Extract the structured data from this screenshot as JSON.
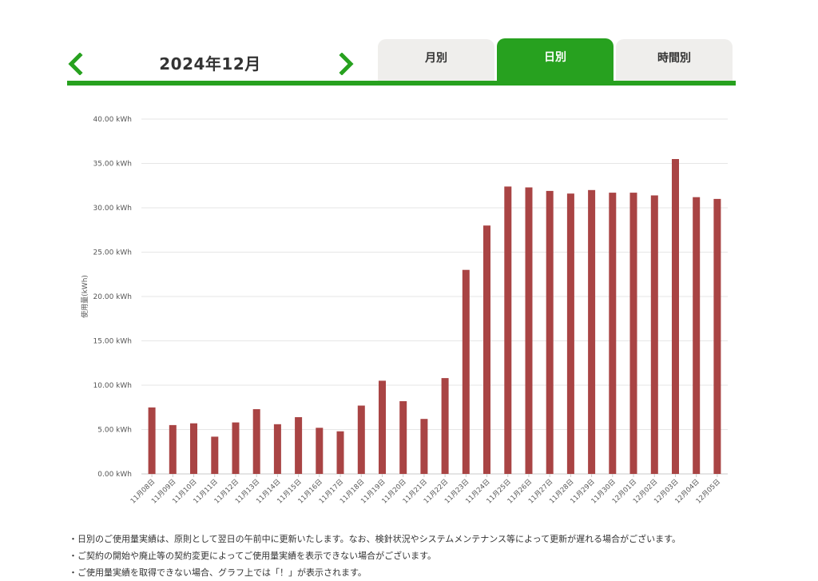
{
  "header": {
    "title": "2024年12月",
    "prev_icon": "chevron-left-icon",
    "next_icon": "chevron-right-icon",
    "tabs": [
      {
        "label": "月別",
        "active": false
      },
      {
        "label": "日別",
        "active": true
      },
      {
        "label": "時間別",
        "active": false
      }
    ]
  },
  "colors": {
    "accent": "#27a11f",
    "bar": "#a94444",
    "tab_inactive": "#efeeec"
  },
  "chart_data": {
    "type": "bar",
    "ylabel": "使用量(kWh)",
    "ylim": [
      0,
      40
    ],
    "yticks": [
      "0.00 kWh",
      "5.00 kWh",
      "10.00 kWh",
      "15.00 kWh",
      "20.00 kWh",
      "25.00 kWh",
      "30.00 kWh",
      "35.00 kWh",
      "40.00 kWh"
    ],
    "grid": true,
    "categories": [
      "11月08日",
      "11月09日",
      "11月10日",
      "11月11日",
      "11月12日",
      "11月13日",
      "11月14日",
      "11月15日",
      "11月16日",
      "11月17日",
      "11月18日",
      "11月19日",
      "11月20日",
      "11月21日",
      "11月22日",
      "11月23日",
      "11月24日",
      "11月25日",
      "11月26日",
      "11月27日",
      "11月28日",
      "11月29日",
      "11月30日",
      "12月01日",
      "12月02日",
      "12月03日",
      "12月04日",
      "12月05日"
    ],
    "values": [
      7.5,
      5.5,
      5.7,
      4.2,
      5.8,
      7.3,
      5.6,
      6.4,
      5.2,
      4.8,
      7.7,
      10.5,
      8.2,
      6.2,
      10.8,
      23.0,
      28.0,
      32.4,
      32.3,
      31.9,
      31.6,
      32.0,
      31.7,
      31.7,
      31.4,
      35.5,
      31.2,
      31.0
    ]
  },
  "notes": [
    "・日別のご使用量実績は、原則として翌日の午前中に更新いたします。なお、検針状況やシステムメンテナンス等によって更新が遅れる場合がございます。",
    "・ご契約の開始や廃止等の契約変更によってご使用量実績を表示できない場合がございます。",
    "・ご使用量実績を取得できない場合、グラフ上では「！」が表示されます。"
  ]
}
